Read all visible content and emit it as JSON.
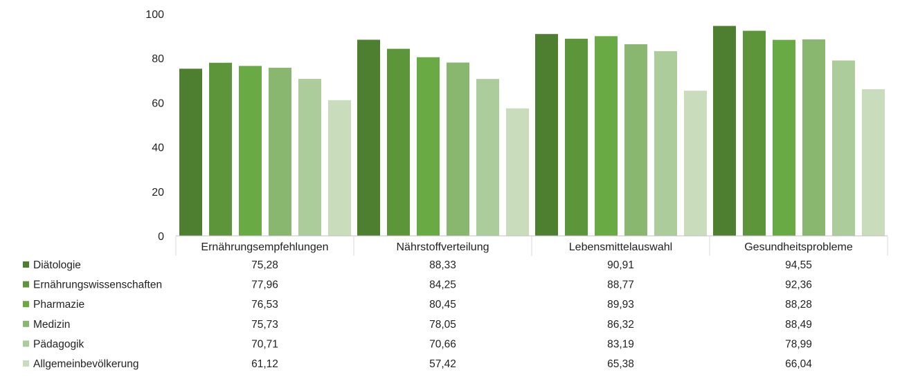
{
  "chart_data": {
    "type": "bar",
    "categories": [
      "Ernährungsempfehlungen",
      "Nährstoffverteilung",
      "Lebensmittelauswahl",
      "Gesundheitsprobleme"
    ],
    "series": [
      {
        "name": "Diätologie",
        "color": "#4e7f30",
        "values": [
          75.28,
          88.33,
          90.91,
          94.55
        ],
        "labels": [
          "75,28",
          "88,33",
          "90,91",
          "94,55"
        ]
      },
      {
        "name": "Ernährungswissenschaften",
        "color": "#5d963a",
        "values": [
          77.96,
          84.25,
          88.77,
          92.36
        ],
        "labels": [
          "77,96",
          "84,25",
          "88,77",
          "92,36"
        ]
      },
      {
        "name": "Pharmazie",
        "color": "#6aaa44",
        "values": [
          76.53,
          80.45,
          89.93,
          88.28
        ],
        "labels": [
          "76,53",
          "80,45",
          "89,93",
          "88,28"
        ]
      },
      {
        "name": "Medizin",
        "color": "#8ab76f",
        "values": [
          75.73,
          78.05,
          86.32,
          88.49
        ],
        "labels": [
          "75,73",
          "78,05",
          "86,32",
          "88,49"
        ]
      },
      {
        "name": "Pädagogik",
        "color": "#adcc9b",
        "values": [
          70.71,
          70.66,
          83.19,
          78.99
        ],
        "labels": [
          "70,71",
          "70,66",
          "83,19",
          "78,99"
        ]
      },
      {
        "name": "Allgemeinbevölkerung",
        "color": "#c9ddbd",
        "values": [
          61.12,
          57.42,
          65.38,
          66.04
        ],
        "labels": [
          "61,12",
          "57,42",
          "65,38",
          "66,04"
        ]
      }
    ],
    "ylim": [
      0,
      100
    ],
    "yticks": [
      0,
      20,
      40,
      60,
      80,
      100
    ],
    "ytick_labels": [
      "0",
      "20",
      "40",
      "60",
      "80",
      "100"
    ],
    "grid": false,
    "legend": "data table below chart"
  }
}
